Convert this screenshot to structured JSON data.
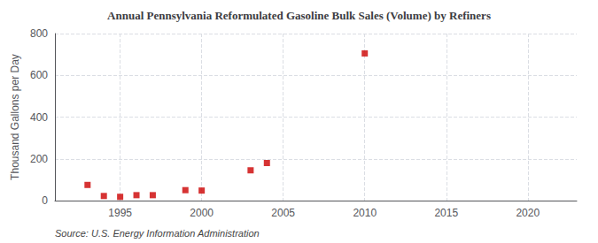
{
  "chart_data": {
    "type": "scatter",
    "title": "Annual Pennsylvania Reformulated Gasoline Bulk Sales (Volume) by Refiners",
    "ylabel": "Thousand Gallons per Day",
    "annotation": "Source: U.S. Energy Information Administration",
    "x": [
      1993,
      1994,
      1995,
      1996,
      1997,
      1999,
      2000,
      2003,
      2004,
      2010
    ],
    "values": [
      75,
      22,
      18,
      26,
      26,
      50,
      48,
      145,
      180,
      705
    ],
    "color": "#cc0000",
    "marker": "square",
    "xlim": [
      1991,
      2023
    ],
    "xticks": [
      1995,
      2000,
      2005,
      2010,
      2015,
      2020
    ],
    "ylim": [
      0,
      800
    ],
    "yticks": [
      0,
      200,
      400,
      600,
      800
    ],
    "grid": true
  }
}
